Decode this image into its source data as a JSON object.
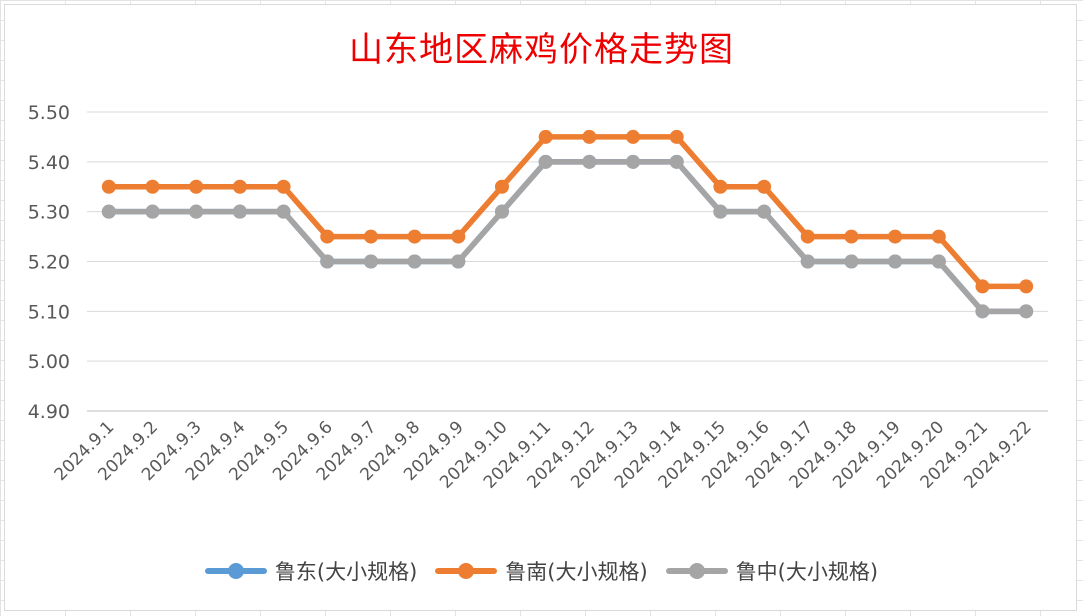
{
  "chart_data": {
    "type": "line",
    "title": "山东地区麻鸡价格走势图",
    "categories": [
      "2024.9.1",
      "2024.9.2",
      "2024.9.3",
      "2024.9.4",
      "2024.9.5",
      "2024.9.6",
      "2024.9.7",
      "2024.9.8",
      "2024.9.9",
      "2024.9.10",
      "2024.9.11",
      "2024.9.12",
      "2024.9.13",
      "2024.9.14",
      "2024.9.15",
      "2024.9.16",
      "2024.9.17",
      "2024.9.18",
      "2024.9.19",
      "2024.9.20",
      "2024.9.21",
      "2024.9.22"
    ],
    "ylim": [
      4.9,
      5.5
    ],
    "yticks": [
      "4.90",
      "5.00",
      "5.10",
      "5.20",
      "5.30",
      "5.40",
      "5.50"
    ],
    "grid": true,
    "legend_position": "bottom",
    "series": [
      {
        "name": "鲁东(大小规格)",
        "color": "#5b9bd5",
        "values": [
          5.3,
          5.3,
          5.3,
          5.3,
          5.3,
          5.2,
          5.2,
          5.2,
          5.2,
          5.3,
          5.4,
          5.4,
          5.4,
          5.4,
          5.3,
          5.3,
          5.2,
          5.2,
          5.2,
          5.2,
          5.1,
          5.1
        ]
      },
      {
        "name": "鲁南(大小规格)",
        "color": "#ed7d31",
        "values": [
          5.35,
          5.35,
          5.35,
          5.35,
          5.35,
          5.25,
          5.25,
          5.25,
          5.25,
          5.35,
          5.45,
          5.45,
          5.45,
          5.45,
          5.35,
          5.35,
          5.25,
          5.25,
          5.25,
          5.25,
          5.15,
          5.15
        ]
      },
      {
        "name": "鲁中(大小规格)",
        "color": "#a5a5a5",
        "values": [
          5.3,
          5.3,
          5.3,
          5.3,
          5.3,
          5.2,
          5.2,
          5.2,
          5.2,
          5.3,
          5.4,
          5.4,
          5.4,
          5.4,
          5.3,
          5.3,
          5.2,
          5.2,
          5.2,
          5.2,
          5.1,
          5.1
        ]
      }
    ]
  }
}
